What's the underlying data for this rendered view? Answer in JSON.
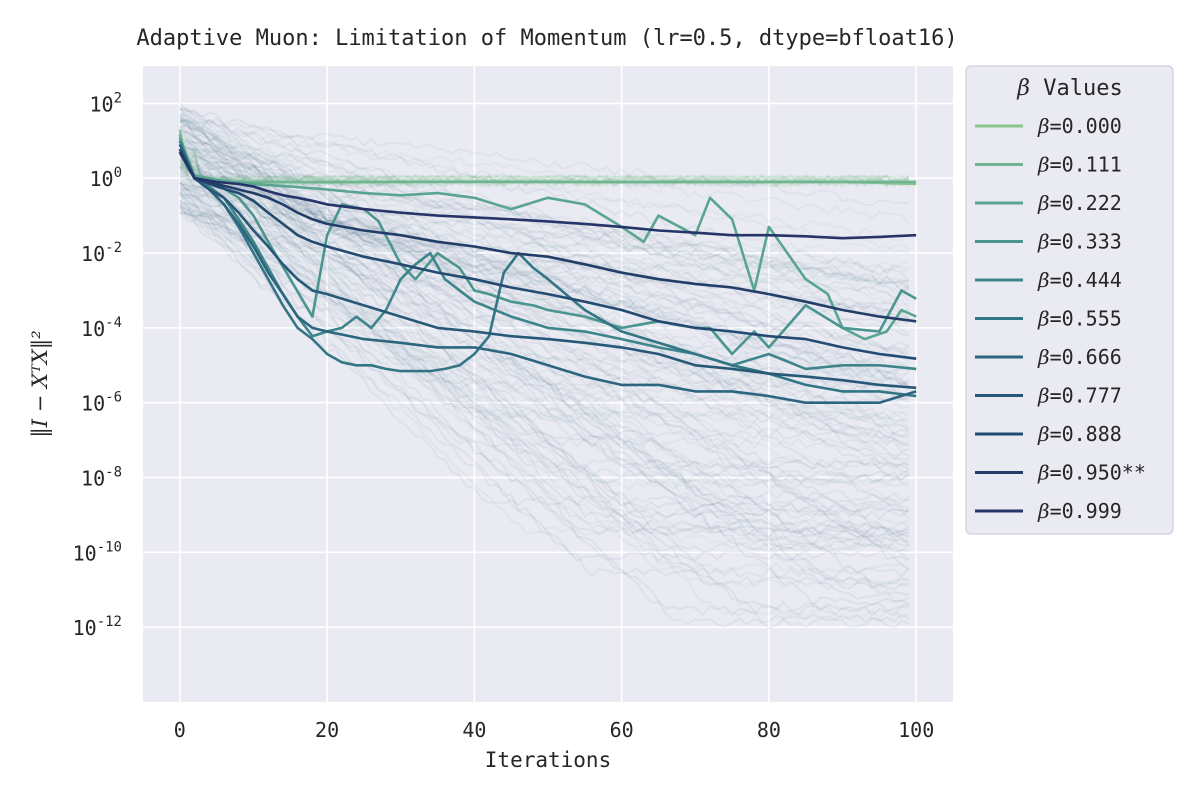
{
  "chart_data": {
    "type": "line",
    "title": "Adaptive Muon: Limitation of Momentum (lr=0.5, dtype=bfloat16)",
    "xlabel": "Iterations",
    "ylabel": "‖I − XᵀX‖²",
    "yscale": "log",
    "xlim": [
      -5,
      105
    ],
    "ylim": [
      1e-14,
      1000.0
    ],
    "x_ticks": [
      "0",
      "20",
      "40",
      "60",
      "80",
      "100"
    ],
    "y_ticks": [
      {
        "base": "10",
        "exp": "2"
      },
      {
        "base": "10",
        "exp": "0"
      },
      {
        "base": "10",
        "exp": "-2"
      },
      {
        "base": "10",
        "exp": "-4"
      },
      {
        "base": "10",
        "exp": "-6"
      },
      {
        "base": "10",
        "exp": "-8"
      },
      {
        "base": "10",
        "exp": "-10"
      },
      {
        "base": "10",
        "exp": "-12"
      }
    ],
    "grid": true,
    "legend": {
      "title_symbol": "β",
      "title_text": " Values",
      "placement": "outside upper right"
    },
    "series": [
      {
        "name": "β=0.000",
        "label_value": "=0.000",
        "color": "#8bc48e",
        "x": [
          0,
          1,
          2,
          3,
          4,
          5,
          10,
          20,
          30,
          40,
          50,
          60,
          70,
          80,
          90,
          100
        ],
        "y": [
          20,
          2,
          1.2,
          0.9,
          0.85,
          0.8,
          0.8,
          0.78,
          0.8,
          0.82,
          0.8,
          0.79,
          0.8,
          0.8,
          0.8,
          0.7
        ]
      },
      {
        "name": "β=0.111",
        "label_value": "=0.111",
        "color": "#70b592",
        "x": [
          0,
          1,
          2,
          3,
          4,
          5,
          10,
          20,
          30,
          40,
          50,
          60,
          70,
          80,
          90,
          100
        ],
        "y": [
          15,
          1.8,
          1.1,
          0.9,
          0.85,
          0.8,
          0.8,
          0.79,
          0.8,
          0.8,
          0.8,
          0.79,
          0.8,
          0.8,
          0.8,
          0.8
        ]
      },
      {
        "name": "β=0.222",
        "label_value": "=0.222",
        "color": "#5aa592",
        "x": [
          0,
          2,
          5,
          10,
          15,
          20,
          25,
          30,
          35,
          40,
          45,
          50,
          55,
          60,
          63,
          65,
          70,
          72,
          75,
          78,
          80,
          85,
          88,
          90,
          93,
          96,
          98,
          100
        ],
        "y": [
          12,
          1.2,
          0.9,
          0.7,
          0.6,
          0.5,
          0.4,
          0.35,
          0.4,
          0.3,
          0.15,
          0.3,
          0.2,
          0.05,
          0.02,
          0.1,
          0.03,
          0.3,
          0.08,
          0.001,
          0.05,
          0.002,
          0.0008,
          0.0001,
          5e-05,
          8e-05,
          0.0003,
          0.0002
        ]
      },
      {
        "name": "β=0.333",
        "label_value": "=0.333",
        "color": "#4b9590",
        "x": [
          0,
          2,
          5,
          8,
          10,
          12,
          15,
          18,
          20,
          22,
          25,
          27,
          30,
          32,
          35,
          38,
          40,
          42,
          45,
          48,
          50,
          55,
          60,
          65,
          70,
          72,
          75,
          78,
          80,
          85,
          90,
          95,
          98,
          100
        ],
        "y": [
          10,
          1.0,
          0.7,
          0.3,
          0.1,
          0.02,
          0.002,
          0.0002,
          0.03,
          0.2,
          0.15,
          0.07,
          0.005,
          0.002,
          0.01,
          0.004,
          0.001,
          0.0008,
          0.0005,
          0.0004,
          0.0003,
          0.0002,
          0.0001,
          0.00015,
          0.0001,
          0.0001,
          2e-05,
          8e-05,
          3e-05,
          0.0004,
          0.0001,
          8e-05,
          0.001,
          0.0006
        ]
      },
      {
        "name": "β=0.444",
        "label_value": "=0.444",
        "color": "#3e858b",
        "x": [
          0,
          2,
          4,
          6,
          8,
          10,
          12,
          14,
          16,
          18,
          20,
          22,
          24,
          26,
          28,
          30,
          32,
          34,
          36,
          40,
          45,
          50,
          55,
          60,
          65,
          70,
          75,
          80,
          85,
          90,
          95,
          100
        ],
        "y": [
          10,
          1.0,
          0.6,
          0.3,
          0.08,
          0.02,
          0.004,
          0.0008,
          0.0002,
          6e-05,
          8e-05,
          0.0001,
          0.0002,
          0.0001,
          0.0003,
          0.002,
          0.005,
          0.01,
          0.002,
          0.0005,
          0.0002,
          0.0001,
          8e-05,
          5e-05,
          3e-05,
          2e-05,
          1e-05,
          2e-05,
          8e-06,
          1e-05,
          1e-05,
          8e-06
        ]
      },
      {
        "name": "β=0.555",
        "label_value": "=0.555",
        "color": "#337585",
        "x": [
          0,
          2,
          4,
          6,
          8,
          10,
          12,
          14,
          16,
          18,
          20,
          22,
          24,
          26,
          28,
          30,
          32,
          34,
          36,
          38,
          40,
          42,
          44,
          46,
          48,
          50,
          55,
          60,
          65,
          70,
          75,
          80,
          85,
          90,
          95,
          100
        ],
        "y": [
          8,
          1.0,
          0.5,
          0.2,
          0.05,
          0.01,
          0.002,
          0.0004,
          0.0001,
          5e-05,
          2e-05,
          1.2e-05,
          1e-05,
          1e-05,
          8e-06,
          7e-06,
          7e-06,
          7e-06,
          8e-06,
          1e-05,
          2e-05,
          6e-05,
          0.003,
          0.01,
          0.004,
          0.002,
          0.0003,
          8e-05,
          4e-05,
          2e-05,
          1e-05,
          6e-06,
          3e-06,
          2e-06,
          2e-06,
          1.5e-06
        ]
      },
      {
        "name": "β=0.666",
        "label_value": "=0.666",
        "color": "#2c667e",
        "x": [
          0,
          2,
          4,
          6,
          8,
          10,
          12,
          14,
          16,
          18,
          20,
          25,
          30,
          35,
          40,
          45,
          50,
          55,
          60,
          65,
          70,
          75,
          80,
          85,
          90,
          95,
          100
        ],
        "y": [
          8,
          1.0,
          0.5,
          0.2,
          0.06,
          0.015,
          0.003,
          0.0008,
          0.0002,
          0.0001,
          8e-05,
          5e-05,
          4e-05,
          3e-05,
          3e-05,
          2e-05,
          1e-05,
          5e-06,
          3e-06,
          3e-06,
          2e-06,
          2e-06,
          1.5e-06,
          1e-06,
          1e-06,
          1e-06,
          2e-06
        ]
      },
      {
        "name": "β=0.777",
        "label_value": "=0.777",
        "color": "#275877",
        "x": [
          0,
          2,
          4,
          6,
          8,
          10,
          12,
          14,
          16,
          18,
          20,
          25,
          30,
          35,
          40,
          45,
          50,
          55,
          60,
          65,
          70,
          75,
          80,
          85,
          90,
          95,
          100
        ],
        "y": [
          6,
          1.0,
          0.5,
          0.3,
          0.12,
          0.04,
          0.015,
          0.005,
          0.002,
          0.001,
          0.0008,
          0.0004,
          0.0002,
          0.0001,
          8e-05,
          6e-05,
          5e-05,
          4e-05,
          3e-05,
          2e-05,
          1e-05,
          8e-06,
          6e-06,
          5e-06,
          4e-06,
          3e-06,
          2.5e-06
        ]
      },
      {
        "name": "β=0.888",
        "label_value": "=0.888",
        "color": "#234a70",
        "x": [
          0,
          2,
          5,
          8,
          10,
          12,
          14,
          16,
          18,
          20,
          25,
          30,
          35,
          40,
          45,
          50,
          55,
          60,
          65,
          70,
          75,
          80,
          85,
          90,
          95,
          100
        ],
        "y": [
          6,
          1.0,
          0.6,
          0.4,
          0.25,
          0.12,
          0.06,
          0.03,
          0.02,
          0.015,
          0.008,
          0.005,
          0.003,
          0.002,
          0.0012,
          0.0008,
          0.0005,
          0.0003,
          0.00015,
          0.0001,
          8e-05,
          6e-05,
          5e-05,
          3e-05,
          2e-05,
          1.5e-05
        ]
      },
      {
        "name": "β=0.950**",
        "label_value": "=0.950**",
        "color": "#213d68",
        "x": [
          0,
          2,
          5,
          8,
          10,
          12,
          14,
          16,
          18,
          20,
          25,
          30,
          35,
          40,
          45,
          50,
          55,
          60,
          65,
          70,
          75,
          80,
          85,
          90,
          95,
          100
        ],
        "y": [
          5,
          1.0,
          0.7,
          0.5,
          0.4,
          0.3,
          0.2,
          0.12,
          0.08,
          0.06,
          0.04,
          0.03,
          0.02,
          0.015,
          0.01,
          0.008,
          0.005,
          0.003,
          0.002,
          0.0015,
          0.0012,
          0.0008,
          0.0005,
          0.0003,
          0.0002,
          0.00015
        ]
      },
      {
        "name": "β=0.999",
        "label_value": "=0.999",
        "color": "#27346a",
        "x": [
          0,
          2,
          5,
          8,
          10,
          12,
          14,
          16,
          18,
          20,
          25,
          30,
          35,
          40,
          45,
          50,
          55,
          60,
          65,
          70,
          75,
          80,
          85,
          90,
          95,
          100
        ],
        "y": [
          5,
          1.0,
          0.8,
          0.7,
          0.6,
          0.45,
          0.35,
          0.3,
          0.25,
          0.2,
          0.15,
          0.12,
          0.1,
          0.09,
          0.08,
          0.07,
          0.06,
          0.05,
          0.04,
          0.035,
          0.03,
          0.03,
          0.028,
          0.025,
          0.027,
          0.03
        ]
      }
    ]
  }
}
